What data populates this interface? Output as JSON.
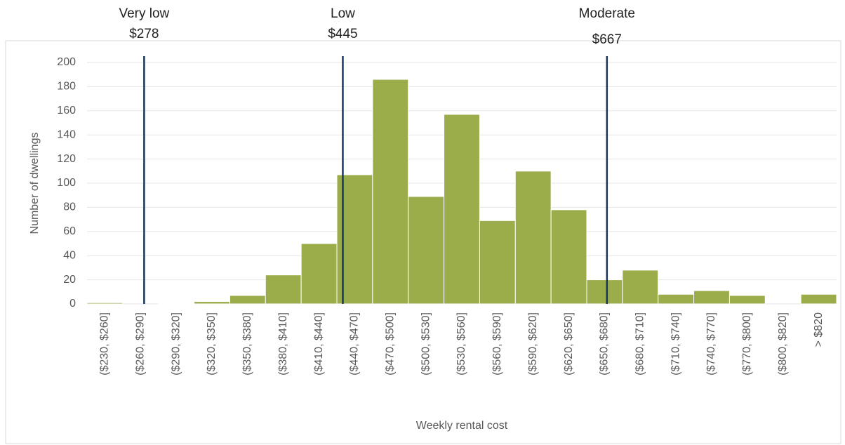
{
  "chart_data": {
    "type": "bar",
    "x_label": "Weekly rental cost",
    "y_label": "Number of dwellings",
    "categories": [
      "($230, $260]",
      "($260, $290]",
      "($290, $320]",
      "($320, $350]",
      "($350, $380]",
      "($380, $410]",
      "($410, $440]",
      "($440, $470]",
      "($470, $500]",
      "($500, $530]",
      "($530, $560]",
      "($560, $590]",
      "($590, $620]",
      "($620, $650]",
      "($650, $680]",
      "($680, $710]",
      "($710, $740]",
      "($740, $770]",
      "($770, $800]",
      "($800, $820]",
      "> $820"
    ],
    "values": [
      1,
      0,
      0.5,
      2,
      7,
      24,
      50,
      107,
      186,
      89,
      157,
      69,
      110,
      78,
      20,
      28,
      8,
      11,
      7,
      0,
      8
    ],
    "color": "#9bad4b",
    "ylim": [
      0,
      200
    ],
    "yticks": [
      0,
      20,
      40,
      60,
      80,
      100,
      120,
      140,
      160,
      180,
      200
    ],
    "xlim": [
      230,
      860
    ],
    "grid": true,
    "annotations": [
      {
        "label": "Very low",
        "value": 278,
        "value_label": "$278"
      },
      {
        "label": "Low",
        "value": 445,
        "value_label": "$445"
      },
      {
        "label": "Moderate",
        "value": 667,
        "value_label": "$667"
      }
    ],
    "annotation_color": "#17375e"
  }
}
